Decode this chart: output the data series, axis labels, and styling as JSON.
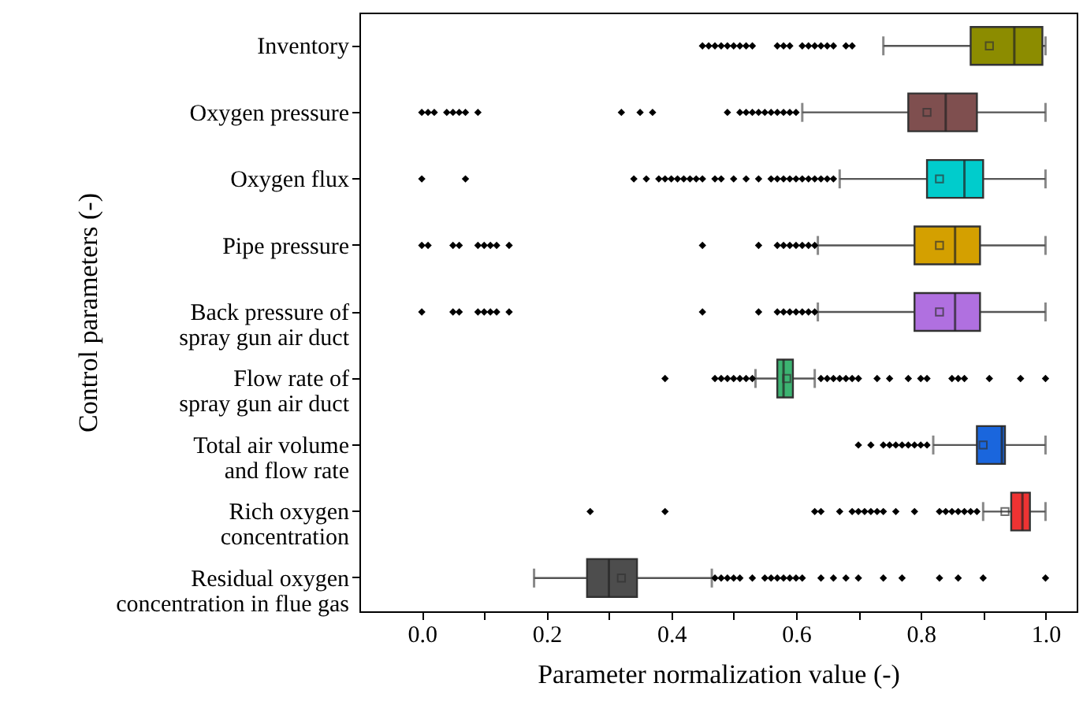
{
  "chart_data": {
    "type": "box",
    "orientation": "horizontal",
    "xlabel": "Parameter normalization value (-)",
    "ylabel": "Control parameters (-)",
    "categories": [
      "Inventory",
      "Oxygen pressure",
      "Oxygen flux",
      "Pipe pressure",
      "Back pressure of spray gun air duct",
      "Flow rate of spray gun air duct",
      "Total air volume and flow rate",
      "Rich oxygen concentration",
      "Residual oxygen concentration in flue gas"
    ],
    "colors": [
      "#8c8c00",
      "#7f4f4f",
      "#00cccc",
      "#d4a000",
      "#b070e0",
      "#3cb371",
      "#1a66dd",
      "#ee3333",
      "#4d4d4d"
    ],
    "boxes": [
      {
        "low": 0.74,
        "q1": 0.88,
        "median": 0.95,
        "q3": 0.995,
        "high": 1.0,
        "mean": 0.91,
        "outliers": [
          0.45,
          0.46,
          0.47,
          0.48,
          0.49,
          0.5,
          0.51,
          0.52,
          0.53,
          0.57,
          0.58,
          0.59,
          0.61,
          0.62,
          0.63,
          0.64,
          0.65,
          0.66,
          0.68,
          0.69
        ]
      },
      {
        "low": 0.61,
        "q1": 0.78,
        "median": 0.84,
        "q3": 0.89,
        "high": 1.0,
        "mean": 0.81,
        "outliers": [
          0.0,
          0.01,
          0.02,
          0.04,
          0.05,
          0.06,
          0.07,
          0.09,
          0.32,
          0.35,
          0.37,
          0.49,
          0.51,
          0.52,
          0.53,
          0.54,
          0.55,
          0.56,
          0.57,
          0.58,
          0.59,
          0.6
        ]
      },
      {
        "low": 0.67,
        "q1": 0.81,
        "median": 0.87,
        "q3": 0.9,
        "high": 1.0,
        "mean": 0.83,
        "outliers": [
          0.0,
          0.07,
          0.34,
          0.36,
          0.38,
          0.39,
          0.4,
          0.41,
          0.42,
          0.43,
          0.44,
          0.45,
          0.47,
          0.48,
          0.5,
          0.52,
          0.54,
          0.56,
          0.57,
          0.58,
          0.59,
          0.6,
          0.61,
          0.62,
          0.63,
          0.64,
          0.65,
          0.66
        ]
      },
      {
        "low": 0.635,
        "q1": 0.79,
        "median": 0.855,
        "q3": 0.895,
        "high": 1.0,
        "mean": 0.83,
        "outliers": [
          0.0,
          0.01,
          0.05,
          0.06,
          0.09,
          0.1,
          0.11,
          0.12,
          0.14,
          0.45,
          0.54,
          0.57,
          0.58,
          0.59,
          0.6,
          0.61,
          0.62,
          0.63
        ]
      },
      {
        "low": 0.635,
        "q1": 0.79,
        "median": 0.855,
        "q3": 0.895,
        "high": 1.0,
        "mean": 0.83,
        "outliers": [
          0.0,
          0.05,
          0.06,
          0.09,
          0.1,
          0.11,
          0.12,
          0.14,
          0.45,
          0.54,
          0.57,
          0.58,
          0.59,
          0.6,
          0.61,
          0.62,
          0.63
        ]
      },
      {
        "low": 0.535,
        "q1": 0.57,
        "median": 0.58,
        "q3": 0.595,
        "high": 0.63,
        "mean": 0.585,
        "outliers": [
          0.39,
          0.47,
          0.48,
          0.49,
          0.5,
          0.51,
          0.52,
          0.53,
          0.64,
          0.65,
          0.66,
          0.67,
          0.68,
          0.69,
          0.7,
          0.73,
          0.75,
          0.78,
          0.8,
          0.81,
          0.85,
          0.86,
          0.87,
          0.91,
          0.96,
          1.0
        ]
      },
      {
        "low": 0.82,
        "q1": 0.89,
        "median": 0.93,
        "q3": 0.935,
        "high": 1.0,
        "mean": 0.9,
        "outliers": [
          0.7,
          0.72,
          0.74,
          0.75,
          0.76,
          0.77,
          0.78,
          0.79,
          0.8,
          0.81
        ]
      },
      {
        "low": 0.9,
        "q1": 0.945,
        "median": 0.963,
        "q3": 0.975,
        "high": 1.0,
        "mean": 0.935,
        "outliers": [
          0.27,
          0.39,
          0.63,
          0.64,
          0.67,
          0.69,
          0.7,
          0.71,
          0.72,
          0.73,
          0.74,
          0.76,
          0.79,
          0.83,
          0.84,
          0.85,
          0.86,
          0.87,
          0.88,
          0.89
        ]
      },
      {
        "low": 0.18,
        "q1": 0.265,
        "median": 0.3,
        "q3": 0.345,
        "high": 0.465,
        "mean": 0.32,
        "outliers": [
          0.47,
          0.48,
          0.49,
          0.5,
          0.51,
          0.53,
          0.55,
          0.56,
          0.57,
          0.58,
          0.59,
          0.6,
          0.61,
          0.64,
          0.66,
          0.68,
          0.7,
          0.74,
          0.77,
          0.83,
          0.86,
          0.9,
          1.0
        ]
      }
    ],
    "marker": "diamond",
    "xlim": [
      -0.1,
      1.05
    ],
    "xticks": [
      {
        "value": 0,
        "label": "0.0"
      },
      {
        "value": 0.1,
        "label": null
      },
      {
        "value": 0.2,
        "label": "0.2"
      },
      {
        "value": 0.3,
        "label": null
      },
      {
        "value": 0.4,
        "label": "0.4"
      },
      {
        "value": 0.5,
        "label": null
      },
      {
        "value": 0.6,
        "label": "0.6"
      },
      {
        "value": 0.7,
        "label": null
      },
      {
        "value": 0.8,
        "label": "0.8"
      },
      {
        "value": 0.9,
        "label": null
      },
      {
        "value": 1,
        "label": "1.0"
      }
    ]
  }
}
